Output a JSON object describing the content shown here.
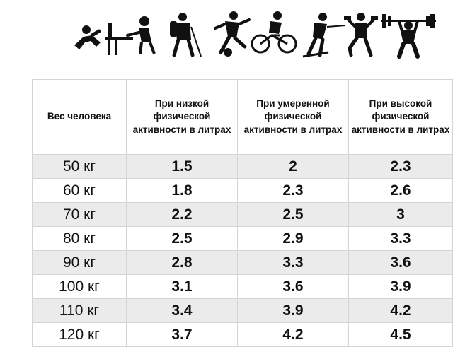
{
  "icons": [
    {
      "name": "crawling-baby-icon"
    },
    {
      "name": "office-worker-icon"
    },
    {
      "name": "hiker-icon"
    },
    {
      "name": "soccer-player-icon"
    },
    {
      "name": "cyclist-icon"
    },
    {
      "name": "skier-icon"
    },
    {
      "name": "dumbbell-lunge-icon"
    },
    {
      "name": "weightlifter-icon"
    }
  ],
  "table": {
    "headers": [
      "Вес человека",
      "При низкой физической активности в литрах",
      "При умеренной физической активности в литрах",
      "При высокой физической активности в литрах"
    ],
    "rows": [
      [
        "50 кг",
        "1.5",
        "2",
        "2.3"
      ],
      [
        "60 кг",
        "1.8",
        "2.3",
        "2.6"
      ],
      [
        "70 кг",
        "2.2",
        "2.5",
        "3"
      ],
      [
        "80 кг",
        "2.5",
        "2.9",
        "3.3"
      ],
      [
        "90 кг",
        "2.8",
        "3.3",
        "3.6"
      ],
      [
        "100 кг",
        "3.1",
        "3.6",
        "3.9"
      ],
      [
        "110 кг",
        "3.4",
        "3.9",
        "4.2"
      ],
      [
        "120 кг",
        "3.7",
        "4.2",
        "4.5"
      ]
    ]
  }
}
